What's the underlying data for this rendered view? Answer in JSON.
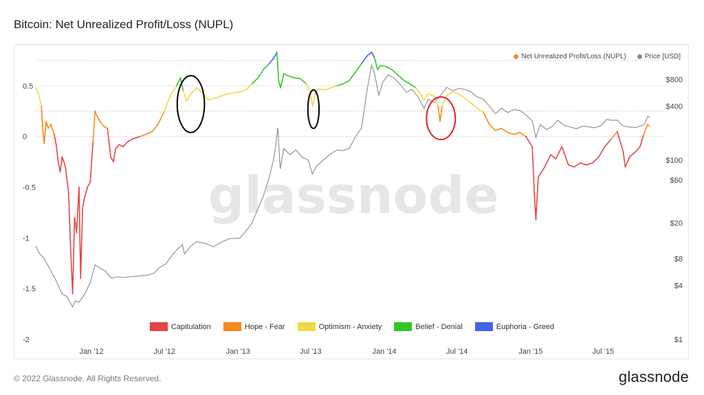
{
  "header": {
    "title": "Bitcoin: Net Unrealized Profit/Loss (NUPL)"
  },
  "footer": {
    "copyright": "© 2022 Glassnode. All Rights Reserved.",
    "logo_text": "glassnode"
  },
  "watermark": "glassnode",
  "colors": {
    "capitulation": "#e34444",
    "hope_fear": "#f5891b",
    "optimism_anxiety": "#efd94a",
    "belief_denial": "#32c724",
    "euphoria_greed": "#4363e6",
    "price": "#8a8a8a",
    "nupl_legend_dot": "#f5891b"
  },
  "chart_data": {
    "type": "line",
    "title": "Bitcoin: Net Unrealized Profit/Loss (NUPL)",
    "x_ticks": [
      "Jan '12",
      "Jul '12",
      "Jan '13",
      "Jul '13",
      "Jan '14",
      "Jul '14",
      "Jan '15",
      "Jul '15"
    ],
    "x_tick_dates": [
      "2012-01-01",
      "2012-07-01",
      "2013-01-01",
      "2013-07-01",
      "2014-01-01",
      "2014-07-01",
      "2015-01-01",
      "2015-07-01"
    ],
    "xlim": [
      "2011-08-15",
      "2015-10-25"
    ],
    "y_left": {
      "ticks": [
        "0.5",
        "0",
        "-0.5",
        "-1",
        "-1.5",
        "-2"
      ],
      "tick_values": [
        0.5,
        0,
        -0.5,
        -1,
        -1.5,
        -2
      ],
      "range": [
        -2,
        0.75
      ]
    },
    "y_right": {
      "ticks": [
        "$800",
        "$400",
        "$100",
        "$60",
        "$20",
        "$8",
        "$4",
        "$1"
      ],
      "tick_values": [
        800,
        400,
        100,
        60,
        20,
        8,
        4,
        1
      ],
      "scale": "log",
      "range": [
        1,
        1300
      ]
    },
    "top_legend": [
      {
        "label": "Net Unrealized Profit/Loss (NUPL)",
        "color": "#f5891b"
      },
      {
        "label": "Price [USD]",
        "color": "#8a8a8a"
      }
    ],
    "zone_legend": [
      {
        "label": "Capitulation",
        "color": "#e34444"
      },
      {
        "label": "Hope - Fear",
        "color": "#f5891b"
      },
      {
        "label": "Optimism - Anxiety",
        "color": "#efd94a"
      },
      {
        "label": "Belief - Denial",
        "color": "#32c724"
      },
      {
        "label": "Euphoria - Greed",
        "color": "#4363e6"
      }
    ],
    "zone_thresholds": [
      0,
      0.25,
      0.5,
      0.75
    ],
    "series": [
      {
        "name": "Net Unrealized Profit/Loss (NUPL)",
        "axis": "left",
        "points": [
          [
            "2011-08-15",
            0.48
          ],
          [
            "2011-08-22",
            0.42
          ],
          [
            "2011-08-29",
            0.3
          ],
          [
            "2011-09-01",
            0.1
          ],
          [
            "2011-09-05",
            -0.07
          ],
          [
            "2011-09-10",
            0.15
          ],
          [
            "2011-09-15",
            0.08
          ],
          [
            "2011-09-22",
            0.12
          ],
          [
            "2011-09-30",
            0.02
          ],
          [
            "2011-10-05",
            -0.08
          ],
          [
            "2011-10-10",
            -0.25
          ],
          [
            "2011-10-15",
            -0.35
          ],
          [
            "2011-10-20",
            -0.2
          ],
          [
            "2011-10-28",
            -0.3
          ],
          [
            "2011-11-05",
            -0.55
          ],
          [
            "2011-11-10",
            -1.1
          ],
          [
            "2011-11-15",
            -1.55
          ],
          [
            "2011-11-20",
            -0.8
          ],
          [
            "2011-11-25",
            -0.95
          ],
          [
            "2011-12-01",
            -0.5
          ],
          [
            "2011-12-05",
            -1.4
          ],
          [
            "2011-12-10",
            -0.7
          ],
          [
            "2011-12-15",
            -0.6
          ],
          [
            "2011-12-22",
            -0.5
          ],
          [
            "2011-12-29",
            -0.45
          ],
          [
            "2012-01-05",
            -0.05
          ],
          [
            "2012-01-10",
            0.25
          ],
          [
            "2012-01-15",
            0.2
          ],
          [
            "2012-01-22",
            0.15
          ],
          [
            "2012-02-01",
            0.1
          ],
          [
            "2012-02-10",
            0.08
          ],
          [
            "2012-02-18",
            -0.2
          ],
          [
            "2012-02-25",
            -0.25
          ],
          [
            "2012-03-01",
            -0.12
          ],
          [
            "2012-03-10",
            -0.08
          ],
          [
            "2012-03-20",
            -0.1
          ],
          [
            "2012-04-01",
            -0.05
          ],
          [
            "2012-04-15",
            -0.02
          ],
          [
            "2012-05-01",
            0.0
          ],
          [
            "2012-05-15",
            0.02
          ],
          [
            "2012-06-01",
            0.05
          ],
          [
            "2012-06-15",
            0.12
          ],
          [
            "2012-07-01",
            0.25
          ],
          [
            "2012-07-15",
            0.4
          ],
          [
            "2012-08-01",
            0.5
          ],
          [
            "2012-08-10",
            0.58
          ],
          [
            "2012-08-17",
            0.45
          ],
          [
            "2012-08-25",
            0.35
          ],
          [
            "2012-09-05",
            0.42
          ],
          [
            "2012-09-20",
            0.48
          ],
          [
            "2012-10-05",
            0.42
          ],
          [
            "2012-10-20",
            0.36
          ],
          [
            "2012-11-05",
            0.38
          ],
          [
            "2012-11-20",
            0.4
          ],
          [
            "2012-12-05",
            0.42
          ],
          [
            "2012-12-20",
            0.43
          ],
          [
            "2013-01-05",
            0.44
          ],
          [
            "2013-01-20",
            0.46
          ],
          [
            "2013-02-05",
            0.52
          ],
          [
            "2013-02-20",
            0.58
          ],
          [
            "2013-03-05",
            0.66
          ],
          [
            "2013-03-20",
            0.72
          ],
          [
            "2013-04-01",
            0.78
          ],
          [
            "2013-04-08",
            0.83
          ],
          [
            "2013-04-12",
            0.55
          ],
          [
            "2013-04-17",
            0.48
          ],
          [
            "2013-04-25",
            0.62
          ],
          [
            "2013-05-05",
            0.6
          ],
          [
            "2013-05-20",
            0.58
          ],
          [
            "2013-06-05",
            0.57
          ],
          [
            "2013-06-20",
            0.52
          ],
          [
            "2013-07-01",
            0.42
          ],
          [
            "2013-07-06",
            0.3
          ],
          [
            "2013-07-12",
            0.42
          ],
          [
            "2013-07-20",
            0.47
          ],
          [
            "2013-08-05",
            0.46
          ],
          [
            "2013-08-20",
            0.48
          ],
          [
            "2013-09-05",
            0.5
          ],
          [
            "2013-09-20",
            0.52
          ],
          [
            "2013-10-05",
            0.55
          ],
          [
            "2013-10-20",
            0.63
          ],
          [
            "2013-11-05",
            0.72
          ],
          [
            "2013-11-20",
            0.8
          ],
          [
            "2013-11-30",
            0.83
          ],
          [
            "2013-12-07",
            0.78
          ],
          [
            "2013-12-15",
            0.66
          ],
          [
            "2013-12-22",
            0.7
          ],
          [
            "2014-01-05",
            0.69
          ],
          [
            "2014-01-20",
            0.66
          ],
          [
            "2014-02-05",
            0.6
          ],
          [
            "2014-02-20",
            0.55
          ],
          [
            "2014-03-05",
            0.52
          ],
          [
            "2014-03-20",
            0.48
          ],
          [
            "2014-04-01",
            0.42
          ],
          [
            "2014-04-10",
            0.36
          ],
          [
            "2014-04-20",
            0.42
          ],
          [
            "2014-05-05",
            0.4
          ],
          [
            "2014-05-15",
            0.3
          ],
          [
            "2014-05-20",
            0.15
          ],
          [
            "2014-05-25",
            0.3
          ],
          [
            "2014-06-05",
            0.4
          ],
          [
            "2014-06-20",
            0.44
          ],
          [
            "2014-07-05",
            0.42
          ],
          [
            "2014-07-20",
            0.38
          ],
          [
            "2014-08-05",
            0.33
          ],
          [
            "2014-08-20",
            0.28
          ],
          [
            "2014-09-05",
            0.24
          ],
          [
            "2014-09-20",
            0.12
          ],
          [
            "2014-10-05",
            0.06
          ],
          [
            "2014-10-20",
            0.08
          ],
          [
            "2014-11-05",
            0.04
          ],
          [
            "2014-11-20",
            0.02
          ],
          [
            "2014-12-05",
            0.04
          ],
          [
            "2014-12-20",
            0.0
          ],
          [
            "2015-01-05",
            -0.1
          ],
          [
            "2015-01-10",
            -0.55
          ],
          [
            "2015-01-14",
            -0.82
          ],
          [
            "2015-01-20",
            -0.4
          ],
          [
            "2015-02-05",
            -0.3
          ],
          [
            "2015-02-20",
            -0.18
          ],
          [
            "2015-03-05",
            -0.22
          ],
          [
            "2015-03-20",
            -0.1
          ],
          [
            "2015-04-05",
            -0.28
          ],
          [
            "2015-04-20",
            -0.3
          ],
          [
            "2015-05-05",
            -0.26
          ],
          [
            "2015-05-20",
            -0.28
          ],
          [
            "2015-06-05",
            -0.26
          ],
          [
            "2015-06-20",
            -0.2
          ],
          [
            "2015-07-05",
            -0.1
          ],
          [
            "2015-07-20",
            -0.03
          ],
          [
            "2015-08-05",
            0.05
          ],
          [
            "2015-08-20",
            -0.15
          ],
          [
            "2015-08-25",
            -0.3
          ],
          [
            "2015-09-05",
            -0.2
          ],
          [
            "2015-09-20",
            -0.15
          ],
          [
            "2015-10-01",
            -0.1
          ],
          [
            "2015-10-10",
            0.02
          ],
          [
            "2015-10-20",
            0.12
          ],
          [
            "2015-10-25",
            0.1
          ]
        ]
      },
      {
        "name": "Price [USD]",
        "axis": "right",
        "points": [
          [
            "2011-08-15",
            11
          ],
          [
            "2011-08-25",
            9
          ],
          [
            "2011-09-05",
            8
          ],
          [
            "2011-09-20",
            6
          ],
          [
            "2011-10-05",
            4.5
          ],
          [
            "2011-10-20",
            3.2
          ],
          [
            "2011-11-01",
            3.0
          ],
          [
            "2011-11-15",
            2.3
          ],
          [
            "2011-11-22",
            2.7
          ],
          [
            "2011-12-01",
            2.6
          ],
          [
            "2011-12-15",
            3.2
          ],
          [
            "2011-12-29",
            4.3
          ],
          [
            "2012-01-10",
            6.8
          ],
          [
            "2012-01-20",
            6.3
          ],
          [
            "2012-02-05",
            5.8
          ],
          [
            "2012-02-20",
            4.8
          ],
          [
            "2012-03-05",
            5.0
          ],
          [
            "2012-03-20",
            4.9
          ],
          [
            "2012-04-05",
            5.0
          ],
          [
            "2012-05-01",
            5.1
          ],
          [
            "2012-05-20",
            5.2
          ],
          [
            "2012-06-05",
            5.5
          ],
          [
            "2012-06-20",
            6.4
          ],
          [
            "2012-07-05",
            7.0
          ],
          [
            "2012-07-20",
            8.7
          ],
          [
            "2012-08-01",
            10
          ],
          [
            "2012-08-15",
            11.5
          ],
          [
            "2012-08-20",
            9
          ],
          [
            "2012-09-05",
            11
          ],
          [
            "2012-09-20",
            12.3
          ],
          [
            "2012-10-10",
            11.8
          ],
          [
            "2012-11-01",
            10.8
          ],
          [
            "2012-11-20",
            12.2
          ],
          [
            "2012-12-10",
            13.3
          ],
          [
            "2013-01-05",
            13.5
          ],
          [
            "2013-01-20",
            16
          ],
          [
            "2013-02-05",
            20
          ],
          [
            "2013-02-20",
            29
          ],
          [
            "2013-03-05",
            40
          ],
          [
            "2013-03-20",
            65
          ],
          [
            "2013-04-01",
            110
          ],
          [
            "2013-04-10",
            230
          ],
          [
            "2013-04-16",
            80
          ],
          [
            "2013-04-25",
            135
          ],
          [
            "2013-05-10",
            115
          ],
          [
            "2013-05-25",
            130
          ],
          [
            "2013-06-10",
            108
          ],
          [
            "2013-06-25",
            100
          ],
          [
            "2013-07-05",
            70
          ],
          [
            "2013-07-15",
            85
          ],
          [
            "2013-08-01",
            100
          ],
          [
            "2013-08-20",
            118
          ],
          [
            "2013-09-05",
            130
          ],
          [
            "2013-09-20",
            128
          ],
          [
            "2013-10-05",
            135
          ],
          [
            "2013-10-20",
            180
          ],
          [
            "2013-11-05",
            230
          ],
          [
            "2013-11-20",
            650
          ],
          [
            "2013-11-30",
            1150
          ],
          [
            "2013-12-07",
            950
          ],
          [
            "2013-12-18",
            530
          ],
          [
            "2013-12-28",
            740
          ],
          [
            "2014-01-10",
            900
          ],
          [
            "2014-01-25",
            830
          ],
          [
            "2014-02-10",
            700
          ],
          [
            "2014-02-25",
            570
          ],
          [
            "2014-03-10",
            620
          ],
          [
            "2014-03-25",
            520
          ],
          [
            "2014-04-10",
            380
          ],
          [
            "2014-04-20",
            480
          ],
          [
            "2014-05-05",
            440
          ],
          [
            "2014-05-20",
            520
          ],
          [
            "2014-06-05",
            650
          ],
          [
            "2014-06-20",
            600
          ],
          [
            "2014-07-05",
            630
          ],
          [
            "2014-07-20",
            620
          ],
          [
            "2014-08-05",
            580
          ],
          [
            "2014-08-20",
            510
          ],
          [
            "2014-09-05",
            480
          ],
          [
            "2014-09-20",
            400
          ],
          [
            "2014-10-05",
            330
          ],
          [
            "2014-10-20",
            380
          ],
          [
            "2014-11-05",
            340
          ],
          [
            "2014-11-20",
            370
          ],
          [
            "2014-12-05",
            360
          ],
          [
            "2014-12-20",
            320
          ],
          [
            "2015-01-05",
            275
          ],
          [
            "2015-01-14",
            180
          ],
          [
            "2015-01-25",
            250
          ],
          [
            "2015-02-10",
            220
          ],
          [
            "2015-02-25",
            240
          ],
          [
            "2015-03-10",
            280
          ],
          [
            "2015-03-25",
            245
          ],
          [
            "2015-04-10",
            235
          ],
          [
            "2015-04-25",
            225
          ],
          [
            "2015-05-10",
            240
          ],
          [
            "2015-05-25",
            237
          ],
          [
            "2015-06-10",
            230
          ],
          [
            "2015-06-25",
            243
          ],
          [
            "2015-07-10",
            285
          ],
          [
            "2015-07-20",
            280
          ],
          [
            "2015-08-05",
            280
          ],
          [
            "2015-08-20",
            240
          ],
          [
            "2015-09-05",
            235
          ],
          [
            "2015-09-20",
            232
          ],
          [
            "2015-10-01",
            240
          ],
          [
            "2015-10-10",
            248
          ],
          [
            "2015-10-15",
            270
          ],
          [
            "2015-10-20",
            310
          ],
          [
            "2015-10-25",
            300
          ]
        ]
      }
    ],
    "annotations": [
      {
        "type": "ellipse",
        "color": "#000000",
        "center": [
          "2012-09-05",
          0.32
        ],
        "rx_days": 34,
        "ry": 0.28
      },
      {
        "type": "ellipse",
        "color": "#000000",
        "center": [
          "2013-07-08",
          0.27
        ],
        "rx_days": 14,
        "ry": 0.19
      },
      {
        "type": "ellipse",
        "color": "#e02424",
        "center": [
          "2014-05-22",
          0.18
        ],
        "rx_days": 36,
        "ry": 0.21
      }
    ]
  }
}
